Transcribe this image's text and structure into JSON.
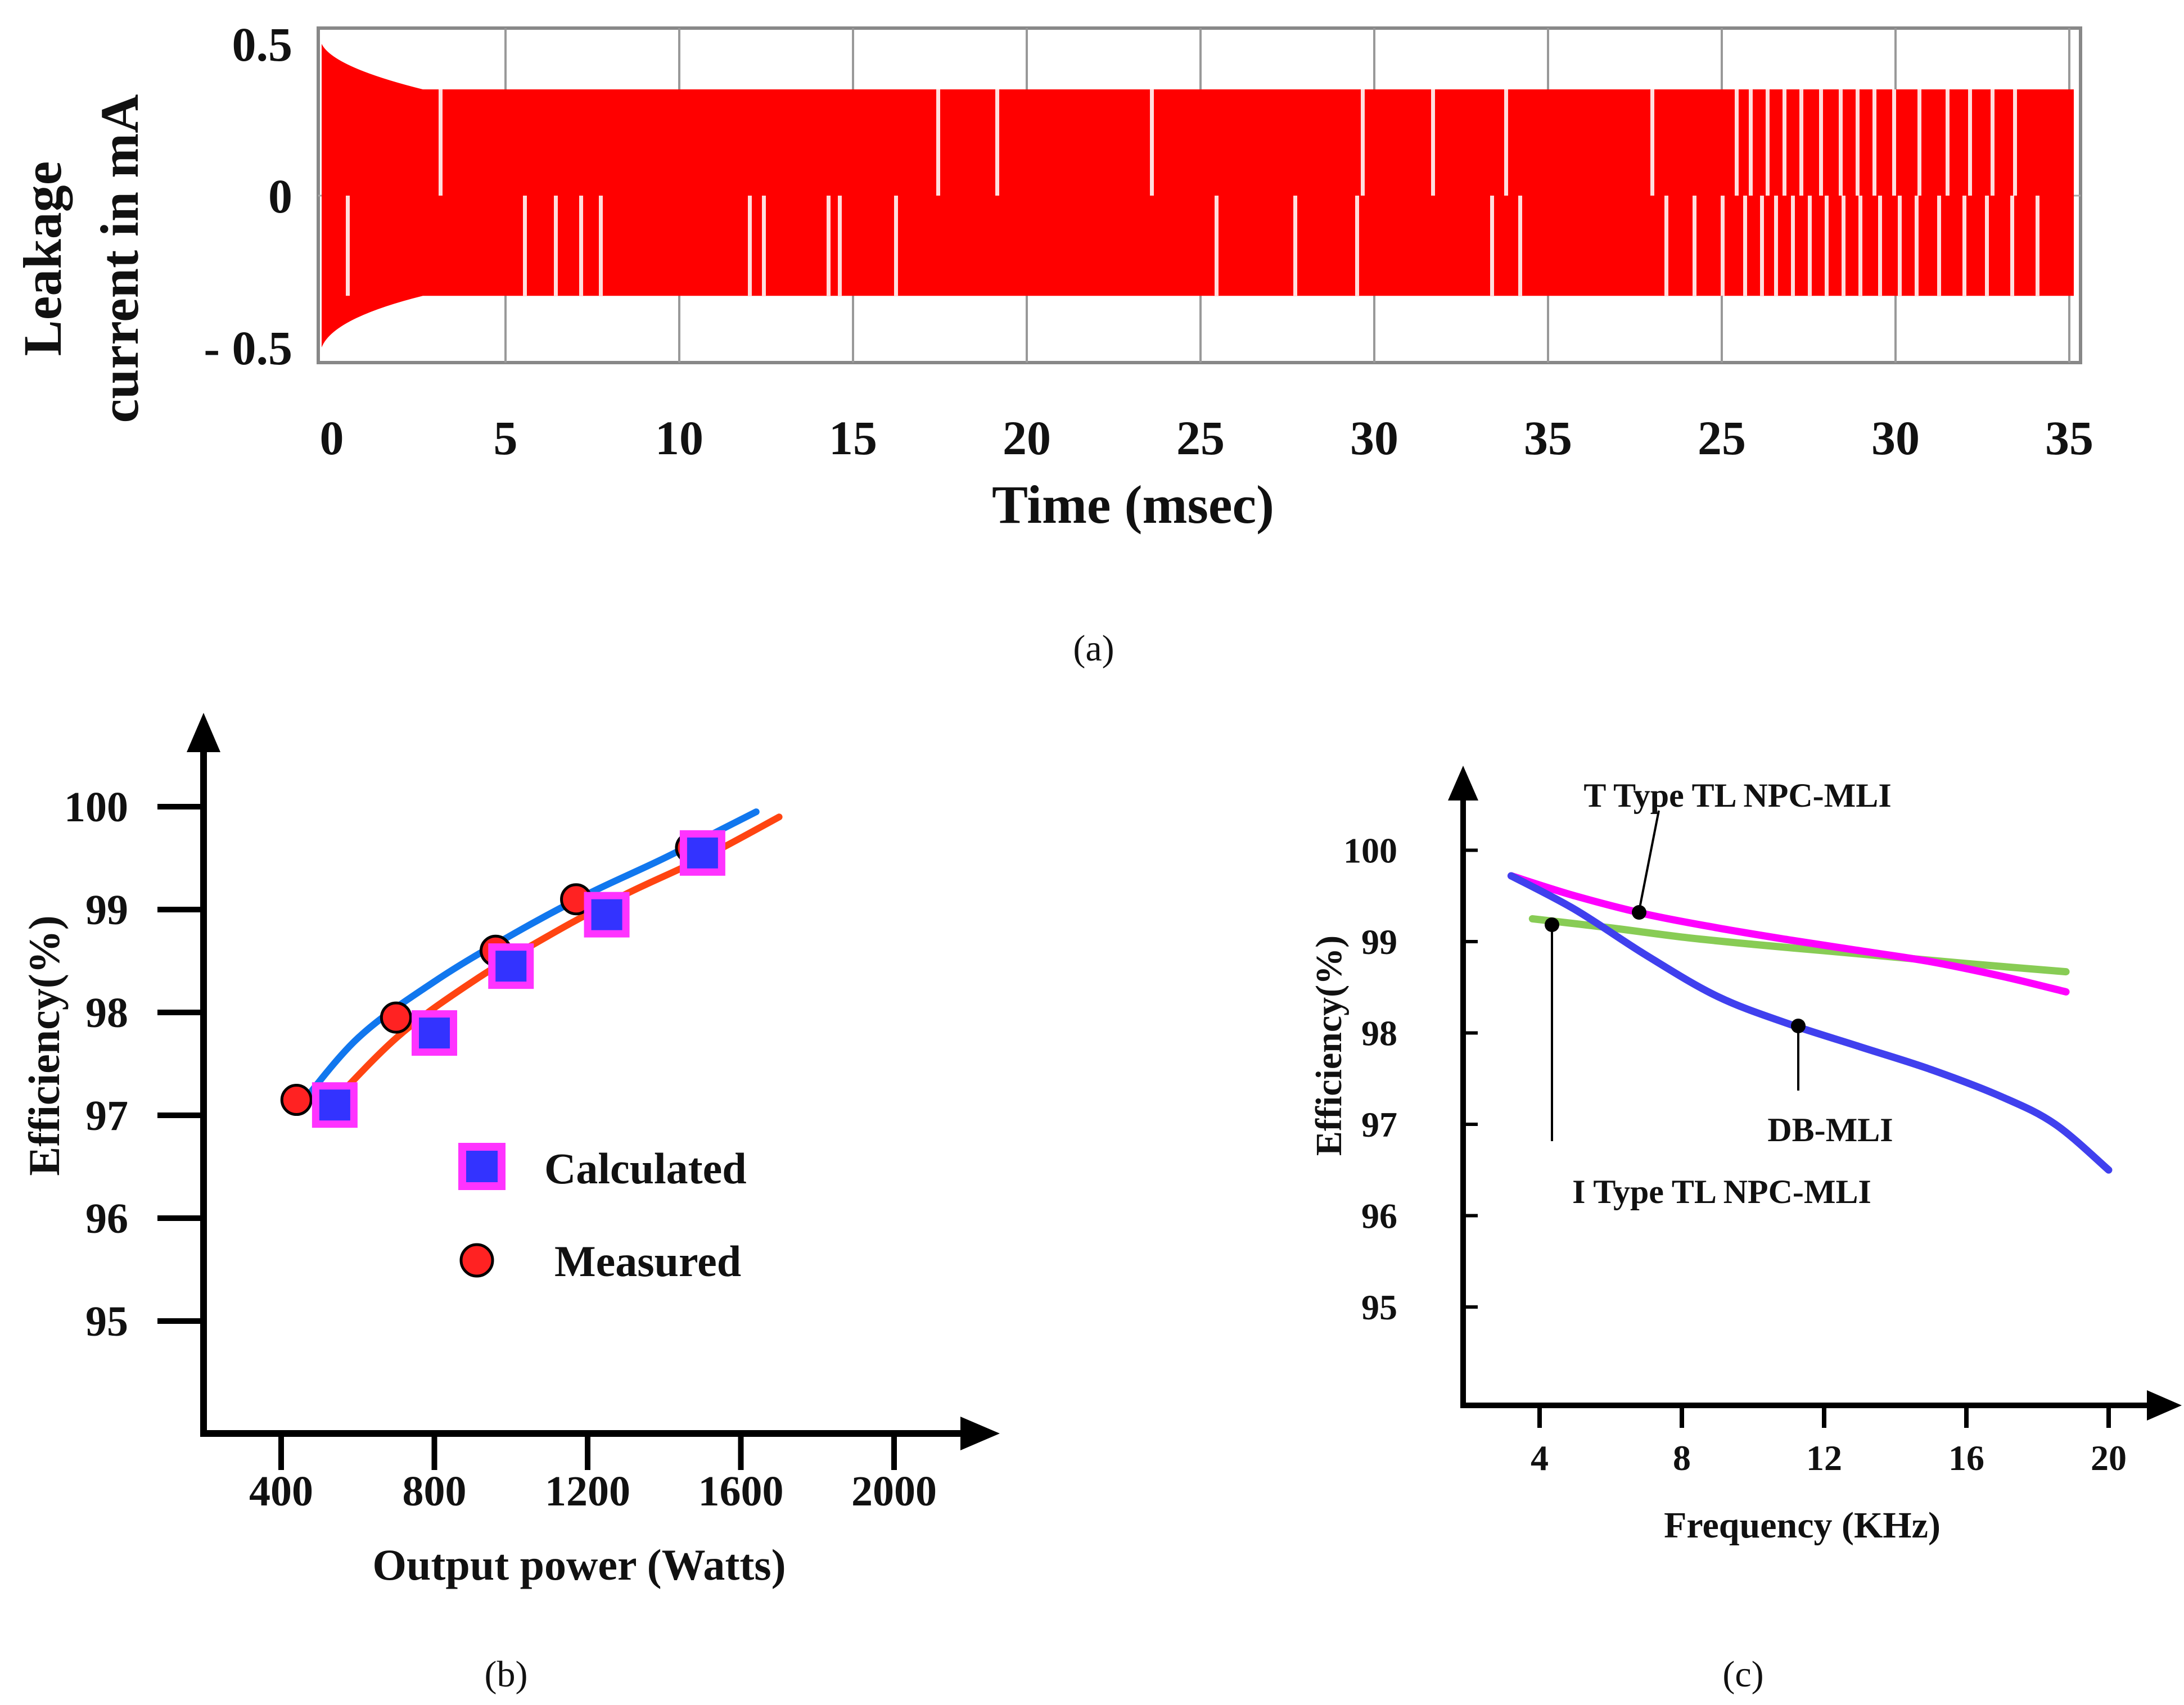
{
  "chart_data": [
    {
      "id": "a",
      "type": "line",
      "caption": "(a)",
      "ylabel_line1": "Leakage",
      "ylabel_line2": "current in mA",
      "xlabel": "Time (msec)",
      "ylim": [
        -0.5,
        0.5
      ],
      "yticks": [
        "0.5",
        "0",
        "- 0.5"
      ],
      "xticks": [
        "0",
        "5",
        "10",
        "15",
        "20",
        "25",
        "30",
        "35",
        "25",
        "30",
        "35"
      ],
      "grid": true,
      "series": [
        {
          "color": "#ff0000",
          "envelope": {
            "peak_start": 0.5,
            "steady_upper": 0.35,
            "steady_lower": -0.33,
            "trough_start": -0.5
          }
        }
      ]
    },
    {
      "id": "b",
      "type": "scatter",
      "caption": "(b)",
      "xlabel": "Output power (Watts)",
      "ylabel": "Efficiency(%)",
      "xlim": [
        200,
        2200
      ],
      "ylim": [
        94,
        101
      ],
      "xticks": [
        400,
        800,
        1200,
        1600,
        2000
      ],
      "yticks": [
        95,
        96,
        97,
        98,
        99,
        100
      ],
      "series": [
        {
          "name": "Calculated",
          "marker": "square",
          "color": "#3333ff",
          "edge_color": "#ff33ff",
          "x": [
            540,
            800,
            1000,
            1250,
            1500
          ],
          "y": [
            97.1,
            97.8,
            98.45,
            98.95,
            99.55
          ],
          "fit_color": "#ff4411",
          "fit": {
            "x": [
              490,
              700,
              900,
              1100,
              1300,
              1500,
              1700
            ],
            "y": [
              96.95,
              97.75,
              98.3,
              98.75,
              99.15,
              99.5,
              99.9
            ]
          }
        },
        {
          "name": "Measured",
          "marker": "circle",
          "color": "#ff2222",
          "edge_color": "#000000",
          "x": [
            440,
            700,
            960,
            1170,
            1470
          ],
          "y": [
            97.15,
            97.95,
            98.6,
            99.1,
            99.6
          ],
          "fit_color": "#1177ee",
          "fit": {
            "x": [
              440,
              600,
              800,
              1000,
              1200,
              1400,
              1640
            ],
            "y": [
              97.05,
              97.75,
              98.3,
              98.75,
              99.15,
              99.5,
              99.95
            ]
          }
        }
      ],
      "legend": "center-right"
    },
    {
      "id": "c",
      "type": "line",
      "caption": "(c)",
      "xlabel": "Frequency (KHz)",
      "ylabel": "Efficiency(%)",
      "xlim": [
        2,
        22
      ],
      "ylim": [
        94,
        101
      ],
      "xticks": [
        4,
        8,
        12,
        16,
        20
      ],
      "yticks": [
        95,
        96,
        97,
        98,
        99,
        100
      ],
      "series": [
        {
          "name": "T Type TL NPC-MLI",
          "color": "#ff00ff",
          "x": [
            3.2,
            5,
            7,
            9,
            11,
            13,
            15,
            17,
            18.8
          ],
          "y": [
            99.72,
            99.5,
            99.3,
            99.15,
            99.02,
            98.9,
            98.78,
            98.62,
            98.45
          ]
        },
        {
          "name": "I Type TL NPC-MLI",
          "color": "#88cc55",
          "x": [
            3.8,
            6,
            8,
            10,
            12,
            14,
            16,
            18.8
          ],
          "y": [
            99.25,
            99.15,
            99.05,
            98.97,
            98.9,
            98.83,
            98.76,
            98.67
          ]
        },
        {
          "name": "DB-MLI",
          "color": "#4040ee",
          "x": [
            3.2,
            5,
            7,
            9,
            11,
            13,
            15,
            17,
            18.5,
            20
          ],
          "y": [
            99.72,
            99.35,
            98.85,
            98.4,
            98.1,
            97.85,
            97.6,
            97.3,
            97.0,
            96.5
          ]
        }
      ],
      "annotations": [
        {
          "text": "T Type TL NPC-MLI",
          "series_index": 0,
          "point": [
            6.8,
            99.3
          ]
        },
        {
          "text": "I Type TL NPC-MLI",
          "series_index": 1,
          "point": [
            4.3,
            99.22
          ]
        },
        {
          "text": "DB-MLI",
          "series_index": 2,
          "point": [
            11.2,
            98.08
          ]
        }
      ]
    }
  ]
}
